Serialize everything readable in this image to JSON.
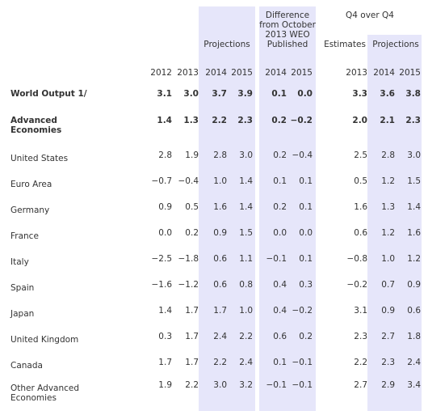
{
  "header": {
    "projections": "Projections",
    "difference": "Difference from October 2013 WEO Published",
    "q4_over_q4": "Q4 over Q4",
    "estimates": "Estimates",
    "q4_projections": "Projections"
  },
  "years": [
    "2012",
    "2013",
    "2014",
    "2015",
    "2014",
    "2015",
    "2013",
    "2014",
    "2015"
  ],
  "rows": [
    {
      "label": "World Output 1/",
      "values": [
        "3.1",
        "3.0",
        "3.7",
        "3.9",
        "0.1",
        "0.0",
        "3.3",
        "3.6",
        "3.8"
      ]
    },
    {
      "label": "Advanced Economies",
      "values": [
        "1.4",
        "1.3",
        "2.2",
        "2.3",
        "0.2",
        "−0.2",
        "2.0",
        "2.1",
        "2.3"
      ]
    },
    {
      "label": "United States",
      "values": [
        "2.8",
        "1.9",
        "2.8",
        "3.0",
        "0.2",
        "−0.4",
        "2.5",
        "2.8",
        "3.0"
      ]
    },
    {
      "label": "Euro Area",
      "values": [
        "−0.7",
        "−0.4",
        "1.0",
        "1.4",
        "0.1",
        "0.1",
        "0.5",
        "1.2",
        "1.5"
      ]
    },
    {
      "label": "Germany",
      "values": [
        "0.9",
        "0.5",
        "1.6",
        "1.4",
        "0.2",
        "0.1",
        "1.6",
        "1.3",
        "1.4"
      ]
    },
    {
      "label": "France",
      "values": [
        "0.0",
        "0.2",
        "0.9",
        "1.5",
        "0.0",
        "0.0",
        "0.6",
        "1.2",
        "1.6"
      ]
    },
    {
      "label": "Italy",
      "values": [
        "−2.5",
        "−1.8",
        "0.6",
        "1.1",
        "−0.1",
        "0.1",
        "−0.8",
        "1.0",
        "1.2"
      ]
    },
    {
      "label": "Spain",
      "values": [
        "−1.6",
        "−1.2",
        "0.6",
        "0.8",
        "0.4",
        "0.3",
        "−0.2",
        "0.7",
        "0.9"
      ]
    },
    {
      "label": "Japan",
      "values": [
        "1.4",
        "1.7",
        "1.7",
        "1.0",
        "0.4",
        "−0.2",
        "3.1",
        "0.9",
        "0.6"
      ]
    },
    {
      "label": "United Kingdom",
      "values": [
        "0.3",
        "1.7",
        "2.4",
        "2.2",
        "0.6",
        "0.2",
        "2.3",
        "2.7",
        "1.8"
      ]
    },
    {
      "label": "Canada",
      "values": [
        "1.7",
        "1.7",
        "2.2",
        "2.4",
        "0.1",
        "−0.1",
        "2.2",
        "2.3",
        "2.4"
      ]
    },
    {
      "label": "Other Advanced Economies",
      "values": [
        "1.9",
        "2.2",
        "3.0",
        "3.2",
        "−0.1",
        "−0.1",
        "2.7",
        "2.9",
        "3.4"
      ]
    }
  ]
}
